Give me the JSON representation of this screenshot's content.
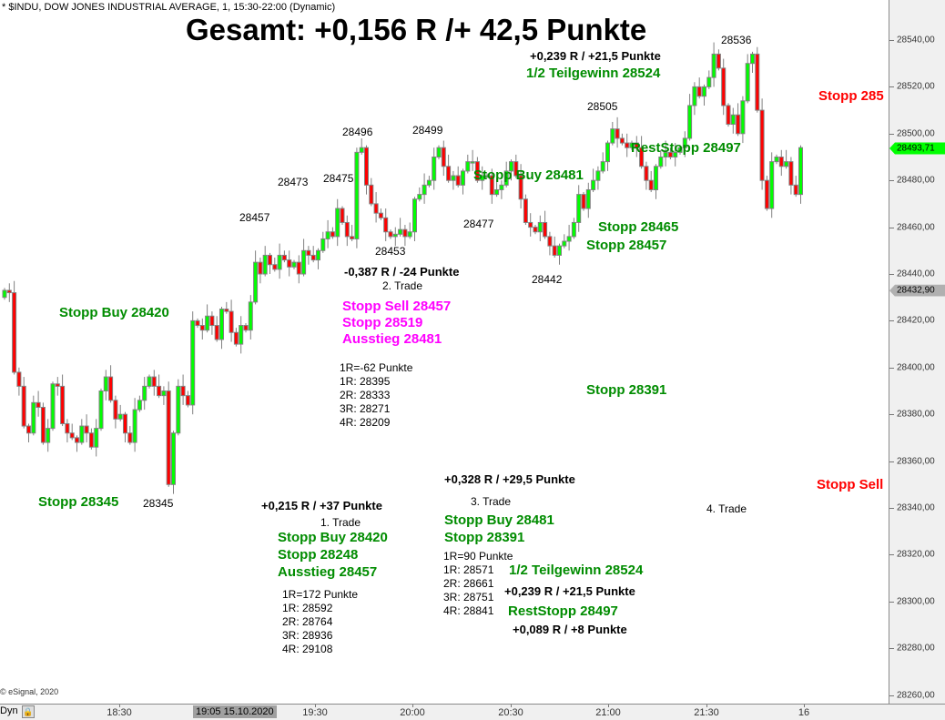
{
  "header": {
    "symbol_line": "* $INDU, DOW JONES INDUSTRIAL AVERAGE, 1, 15:30-22:00 (Dynamic)"
  },
  "copyright": "© eSignal, 2020",
  "bottom_bar": {
    "mode": "Dyn",
    "lock_icon": "lock-icon",
    "selected_time": "19:05 15.10.2020"
  },
  "colors": {
    "up": "#00ff00",
    "down": "#ff0000",
    "outline": "#808080",
    "green_text": "#008c00",
    "magenta_text": "#ff00ff",
    "red_text": "#ff0000"
  },
  "chart_data": {
    "type": "candlestick",
    "title": "Gesamt: +0,156 R /+ 42,5 Punkte",
    "ylim": [
      28260,
      28545
    ],
    "y_ticks": [
      28540,
      28520,
      28500,
      28480,
      28460,
      28440,
      28420,
      28400,
      28380,
      28360,
      28340,
      28320,
      28300,
      28280,
      28260
    ],
    "y_tick_labels": [
      "28540,00",
      "28520,00",
      "28500,00",
      "28480,00",
      "28460,00",
      "28440,00",
      "28420,00",
      "28400,00",
      "28380,00",
      "28360,00",
      "28340,00",
      "28320,00",
      "28300,00",
      "28280,00",
      "28260,00"
    ],
    "x_tick_labels": [
      "18:30",
      "19:30",
      "20:00",
      "20:30",
      "21:00",
      "21:30",
      "16"
    ],
    "price_markers": [
      {
        "value": 28493.71,
        "label": "28493,71",
        "color": "#00ff00"
      },
      {
        "value": 28432.9,
        "label": "28432,90",
        "color": "#b0b0b0"
      }
    ],
    "first_open": 28430,
    "closes": [
      28433,
      28432,
      28398,
      28392,
      28375,
      28372,
      28385,
      28383,
      28368,
      28374,
      28393,
      28392,
      28376,
      28372,
      28370,
      28368,
      28375,
      28372,
      28366,
      28374,
      28390,
      28396,
      28386,
      28378,
      28380,
      28372,
      28368,
      28382,
      28386,
      28392,
      28396,
      28392,
      28388,
      28390,
      28350,
      28372,
      28392,
      28388,
      28384,
      28420,
      28418,
      28416,
      28422,
      28418,
      28412,
      28425,
      28424,
      28415,
      28410,
      28418,
      28416,
      28428,
      28445,
      28440,
      28448,
      28444,
      28442,
      28448,
      28446,
      28443,
      28445,
      28440,
      28450,
      28448,
      28446,
      28450,
      28455,
      28458,
      28456,
      28468,
      28462,
      28456,
      28455,
      28492,
      28494,
      28478,
      28470,
      28466,
      28464,
      28458,
      28456,
      28457,
      28459,
      28456,
      28458,
      28472,
      28474,
      28478,
      28480,
      28490,
      28494,
      28486,
      28480,
      28482,
      28478,
      28484,
      28488,
      28488,
      28480,
      28482,
      28482,
      28474,
      28476,
      28478,
      28484,
      28488,
      28482,
      28472,
      28462,
      28460,
      28458,
      28462,
      28456,
      28452,
      28448,
      28452,
      28454,
      28456,
      28462,
      28474,
      28468,
      28476,
      28480,
      28484,
      28488,
      28496,
      28502,
      28498,
      28496,
      28494,
      28496,
      28494,
      28486,
      28480,
      28476,
      28486,
      28490,
      28492,
      28490,
      28492,
      28494,
      28498,
      28512,
      28520,
      28516,
      28520,
      28524,
      28534,
      28528,
      28512,
      28504,
      28508,
      28500,
      28514,
      28530,
      28534,
      28510,
      28480,
      28468,
      28488,
      28490,
      28486,
      28488,
      28478,
      28474,
      28494
    ]
  },
  "annotations": [
    {
      "text": "+0,239 R / +21,5 Punkte"
    },
    {
      "text": "1/2 Teilgewinn 28524"
    },
    {
      "text": "28536"
    },
    {
      "text": "Stopp 285"
    },
    {
      "text": "28505"
    },
    {
      "text": "28496"
    },
    {
      "text": "28499"
    },
    {
      "text": "28473"
    },
    {
      "text": "28475"
    },
    {
      "text": "28457"
    },
    {
      "text": "RestStopp 28497"
    },
    {
      "text": "Stopp Buy 28481"
    },
    {
      "text": "28477"
    },
    {
      "text": "Stopp 28465"
    },
    {
      "text": "Stopp 28457"
    },
    {
      "text": "28453"
    },
    {
      "text": "-0,387 R / -24 Punkte"
    },
    {
      "text": "2. Trade"
    },
    {
      "text": "28442"
    },
    {
      "text": "Stopp Buy 28420"
    },
    {
      "text": "Stopp Sell 28457"
    },
    {
      "text": "Stopp 28519"
    },
    {
      "text": "Ausstieg 28481"
    },
    {
      "text": "1R=-62 Punkte"
    },
    {
      "text": "1R: 28395"
    },
    {
      "text": "2R: 28333"
    },
    {
      "text": "3R: 28271"
    },
    {
      "text": "4R: 28209"
    },
    {
      "text": "Stopp 28391"
    },
    {
      "text": "+0,328 R / +29,5 Punkte"
    },
    {
      "text": "Stopp Sell"
    },
    {
      "text": "3. Trade"
    },
    {
      "text": "Stopp 28345"
    },
    {
      "text": "28345"
    },
    {
      "text": "+0,215 R / +37 Punkte"
    },
    {
      "text": "4. Trade"
    },
    {
      "text": "1. Trade"
    },
    {
      "text": "Stopp Buy 28481"
    },
    {
      "text": "Stopp 28391"
    },
    {
      "text": "Stopp Buy 28420"
    },
    {
      "text": "Stopp 28248"
    },
    {
      "text": "Ausstieg 28457"
    },
    {
      "text": "1R=90 Punkte"
    },
    {
      "text": "1R: 28571"
    },
    {
      "text": "2R: 28661"
    },
    {
      "text": "3R: 28751"
    },
    {
      "text": "4R: 28841"
    },
    {
      "text": "1/2 Teilgewinn 28524"
    },
    {
      "text": "+0,239 R / +21,5 Punkte"
    },
    {
      "text": "RestStopp 28497"
    },
    {
      "text": "+0,089 R / +8 Punkte"
    },
    {
      "text": "1R=172 Punkte"
    },
    {
      "text": "1R: 28592"
    },
    {
      "text": "2R: 28764"
    },
    {
      "text": "3R: 28936"
    },
    {
      "text": "4R: 29108"
    }
  ]
}
